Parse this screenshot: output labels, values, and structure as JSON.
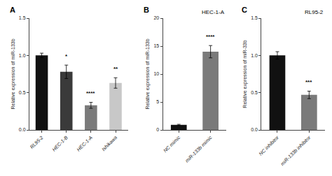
{
  "chart_data": [
    {
      "type": "bar",
      "label": "A",
      "ylabel": "Relative expression of miR-133b",
      "categories": [
        "RL95-2",
        "HEC-1-B",
        "HEC-1-A",
        "Ishikawa"
      ],
      "values": [
        1.0,
        0.78,
        0.33,
        0.63
      ],
      "errors": [
        0.03,
        0.09,
        0.04,
        0.07
      ],
      "colors": [
        "#111111",
        "#3a3a3a",
        "#7a7a7a",
        "#c8c8c8"
      ],
      "ylim": [
        0,
        1.5
      ],
      "yticks": [
        {
          "value": 0,
          "label": "0.0"
        },
        0.5,
        {
          "value": 1,
          "label": "1.0"
        },
        1.5
      ],
      "grid": false,
      "annotations": [
        {
          "category": "HEC-1-B",
          "text": "*"
        },
        {
          "category": "HEC-1-A",
          "text": "****"
        },
        {
          "category": "Ishikawa",
          "text": "**"
        }
      ]
    },
    {
      "type": "bar",
      "label": "B",
      "title": "HEC-1-A",
      "ylabel": "Relative expression of miR-133b",
      "categories": [
        "NC mimic",
        "miR-133b mimic"
      ],
      "values": [
        0.9,
        14.0
      ],
      "errors": [
        0.1,
        1.1
      ],
      "colors": [
        "#111111",
        "#7a7a7a"
      ],
      "ylim": [
        0,
        20
      ],
      "yticks": [
        0,
        5,
        10,
        15,
        20
      ],
      "grid": false,
      "annotations": [
        {
          "category": "miR-133b mimic",
          "text": "****"
        }
      ]
    },
    {
      "type": "bar",
      "label": "C",
      "title": "RL95-2",
      "ylabel": "Relative expression of miR-33b",
      "categories": [
        "NC inhibitor",
        "miR-133b inhibitor"
      ],
      "values": [
        1.0,
        0.47
      ],
      "errors": [
        0.05,
        0.05
      ],
      "colors": [
        "#111111",
        "#7a7a7a"
      ],
      "ylim": [
        0,
        1.5
      ],
      "yticks": [
        {
          "value": 0,
          "label": "0.0"
        },
        0.5,
        {
          "value": 1,
          "label": "1.0"
        },
        1.5
      ],
      "grid": false,
      "annotations": [
        {
          "category": "miR-133b inhibitor",
          "text": "***"
        }
      ]
    }
  ]
}
